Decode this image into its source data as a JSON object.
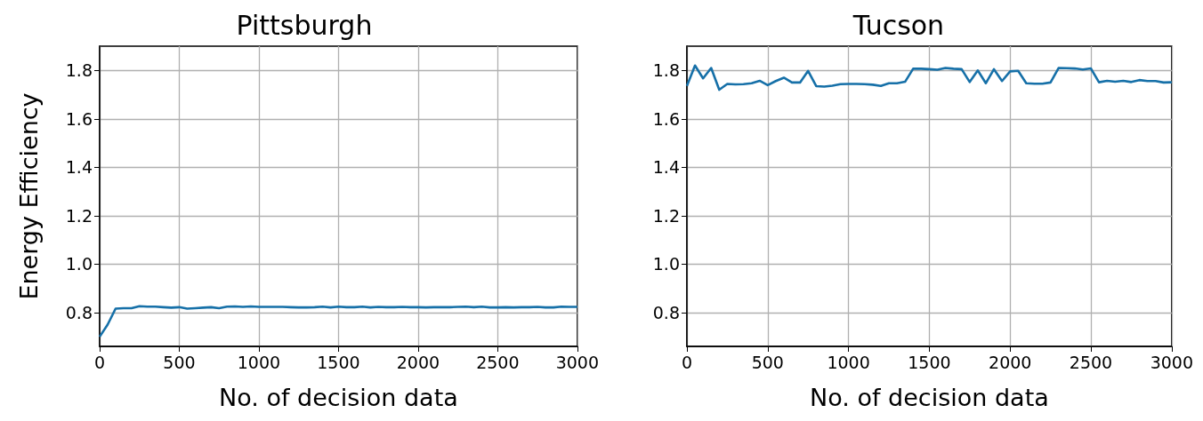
{
  "chart_data": [
    {
      "type": "line",
      "title": "Pittsburgh",
      "xlabel": "No. of decision data",
      "ylabel": "Energy Efficiency",
      "color": "#1670a8",
      "grid": true,
      "x": [
        0,
        50,
        100,
        150,
        200,
        250,
        300,
        350,
        400,
        450,
        500,
        550,
        600,
        650,
        700,
        750,
        800,
        850,
        900,
        950,
        1000,
        1050,
        1100,
        1150,
        1200,
        1250,
        1300,
        1350,
        1400,
        1450,
        1500,
        1550,
        1600,
        1650,
        1700,
        1750,
        1800,
        1850,
        1900,
        1950,
        2000,
        2050,
        2100,
        2150,
        2200,
        2250,
        2300,
        2350,
        2400,
        2450,
        2500,
        2550,
        2600,
        2650,
        2700,
        2750,
        2800,
        2850,
        2900,
        2950,
        3000
      ],
      "values": [
        0.7,
        0.75,
        0.816,
        0.818,
        0.818,
        0.826,
        0.824,
        0.824,
        0.822,
        0.82,
        0.822,
        0.816,
        0.818,
        0.82,
        0.822,
        0.818,
        0.824,
        0.825,
        0.823,
        0.825,
        0.823,
        0.823,
        0.823,
        0.823,
        0.822,
        0.821,
        0.821,
        0.822,
        0.824,
        0.821,
        0.824,
        0.822,
        0.822,
        0.824,
        0.821,
        0.823,
        0.822,
        0.822,
        0.823,
        0.822,
        0.822,
        0.821,
        0.822,
        0.822,
        0.822,
        0.823,
        0.824,
        0.822,
        0.824,
        0.821,
        0.821,
        0.822,
        0.821,
        0.822,
        0.822,
        0.823,
        0.821,
        0.821,
        0.824,
        0.823,
        0.823
      ],
      "xlim": [
        0,
        3000
      ],
      "ylim": [
        0.66,
        1.9
      ],
      "xticks": [
        0,
        500,
        1000,
        1500,
        2000,
        2500,
        3000
      ],
      "yticks": [
        {
          "value": 0.8,
          "label": "0.8"
        },
        {
          "value": 1,
          "label": "1.0"
        },
        {
          "value": 1.2,
          "label": "1.2"
        },
        {
          "value": 1.4,
          "label": "1.4"
        },
        {
          "value": 1.6,
          "label": "1.6"
        },
        {
          "value": 1.8,
          "label": "1.8"
        }
      ]
    },
    {
      "type": "line",
      "title": "Tucson",
      "xlabel": "No. of decision data",
      "color": "#1670a8",
      "grid": true,
      "x": [
        0,
        50,
        100,
        150,
        200,
        250,
        300,
        350,
        400,
        450,
        500,
        550,
        600,
        650,
        700,
        750,
        800,
        850,
        900,
        950,
        1000,
        1050,
        1100,
        1150,
        1200,
        1250,
        1300,
        1350,
        1400,
        1450,
        1500,
        1550,
        1600,
        1650,
        1700,
        1750,
        1800,
        1850,
        1900,
        1950,
        2000,
        2050,
        2100,
        2150,
        2200,
        2250,
        2300,
        2350,
        2400,
        2450,
        2500,
        2550,
        2600,
        2650,
        2700,
        2750,
        2800,
        2850,
        2900,
        2950,
        3000
      ],
      "values": [
        1.736,
        1.82,
        1.767,
        1.81,
        1.72,
        1.744,
        1.742,
        1.743,
        1.747,
        1.757,
        1.739,
        1.756,
        1.77,
        1.75,
        1.75,
        1.798,
        1.735,
        1.733,
        1.737,
        1.743,
        1.744,
        1.744,
        1.743,
        1.741,
        1.736,
        1.747,
        1.747,
        1.753,
        1.807,
        1.807,
        1.805,
        1.803,
        1.81,
        1.807,
        1.805,
        1.752,
        1.8,
        1.747,
        1.805,
        1.756,
        1.796,
        1.798,
        1.747,
        1.745,
        1.745,
        1.75,
        1.81,
        1.809,
        1.808,
        1.804,
        1.808,
        1.751,
        1.757,
        1.753,
        1.757,
        1.752,
        1.76,
        1.756,
        1.756,
        1.75,
        1.751
      ],
      "xlim": [
        0,
        3000
      ],
      "ylim": [
        0.66,
        1.9
      ],
      "xticks": [
        0,
        500,
        1000,
        1500,
        2000,
        2500,
        3000
      ],
      "yticks": [
        {
          "value": 0.8,
          "label": "0.8"
        },
        {
          "value": 1,
          "label": "1.0"
        },
        {
          "value": 1.2,
          "label": "1.2"
        },
        {
          "value": 1.4,
          "label": "1.4"
        },
        {
          "value": 1.6,
          "label": "1.6"
        },
        {
          "value": 1.8,
          "label": "1.8"
        }
      ]
    }
  ]
}
